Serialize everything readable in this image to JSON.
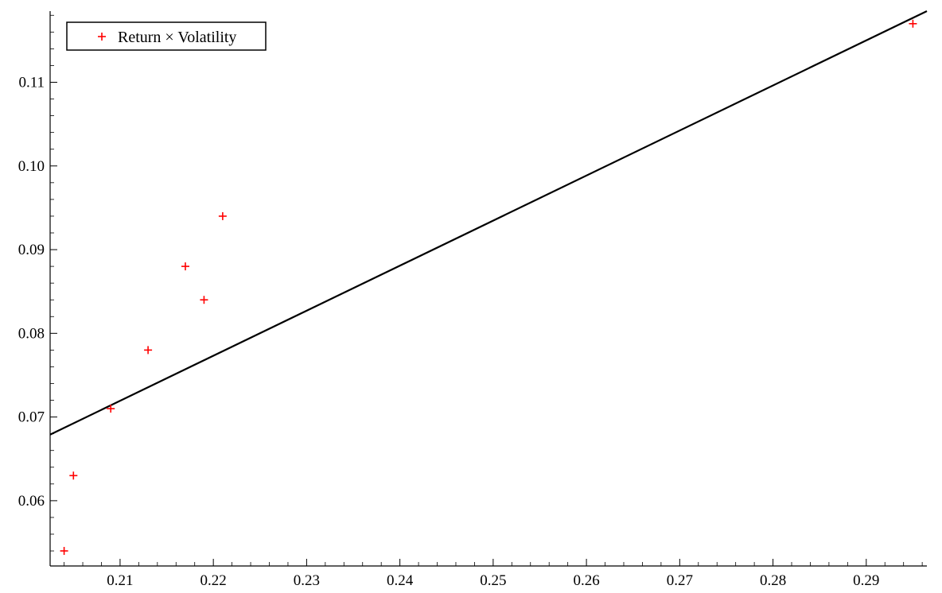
{
  "chart_data": {
    "type": "scatter",
    "title": "",
    "xlabel": "",
    "ylabel": "",
    "xlim": [
      0.2025,
      0.2965
    ],
    "ylim": [
      0.0522,
      0.1185
    ],
    "x_ticks": [
      0.21,
      0.22,
      0.23,
      0.24,
      0.25,
      0.26,
      0.27,
      0.28,
      0.29
    ],
    "y_ticks": [
      0.06,
      0.07,
      0.08,
      0.09,
      0.1,
      0.11
    ],
    "x_tick_labels": [
      "0.21",
      "0.22",
      "0.23",
      "0.24",
      "0.25",
      "0.26",
      "0.27",
      "0.28",
      "0.29"
    ],
    "y_tick_labels": [
      "0.06",
      "0.07",
      "0.08",
      "0.09",
      "0.10",
      "0.11"
    ],
    "grid": false,
    "legend_position": "top-left",
    "series": [
      {
        "name": "Return × Volatility",
        "marker": "plus",
        "color": "#ff0000",
        "points": [
          {
            "x": 0.204,
            "y": 0.054
          },
          {
            "x": 0.205,
            "y": 0.063
          },
          {
            "x": 0.209,
            "y": 0.071
          },
          {
            "x": 0.213,
            "y": 0.078
          },
          {
            "x": 0.217,
            "y": 0.088
          },
          {
            "x": 0.219,
            "y": 0.084
          },
          {
            "x": 0.221,
            "y": 0.094
          },
          {
            "x": 0.295,
            "y": 0.117
          }
        ]
      }
    ],
    "fit_line": {
      "color": "#000000",
      "points": [
        {
          "x": 0.2025,
          "y": 0.0679
        },
        {
          "x": 0.2965,
          "y": 0.1185
        }
      ]
    }
  }
}
